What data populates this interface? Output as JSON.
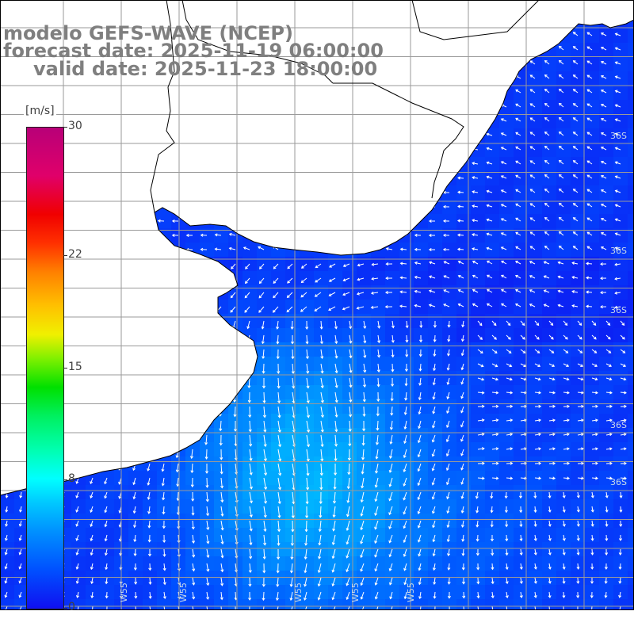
{
  "title": {
    "model": "modelo GEFS-WAVE (NCEP)",
    "forecast_date": "forecast date: 2025-11-19 06:00:00",
    "valid_date": "valid date: 2025-11-23 18:00:00"
  },
  "colorbar": {
    "unit": "[m/s]",
    "min": 0,
    "max": 30,
    "ticks": [
      {
        "value": 30,
        "label": "30"
      },
      {
        "value": 22,
        "label": "22"
      },
      {
        "value": 15,
        "label": "15"
      },
      {
        "value": 8,
        "label": "8"
      },
      {
        "value": 0,
        "label": "0"
      }
    ],
    "colors": [
      "#1010f0",
      "#0050ff",
      "#0090ff",
      "#00c8ff",
      "#00ffff",
      "#00f060",
      "#00e000",
      "#f0f000",
      "#ff8000",
      "#f00000",
      "#b80078"
    ]
  },
  "map": {
    "land_color": "#ffffff",
    "coastline_color": "#000000",
    "grid_color": "#9a9a9a",
    "arrow_color": "#ffffff",
    "lat_labels": [
      "36S",
      "36S",
      "36S",
      "36S",
      "36S"
    ],
    "lon_labels": [
      "W55",
      "W55",
      "W55",
      "W55",
      "W55"
    ]
  }
}
